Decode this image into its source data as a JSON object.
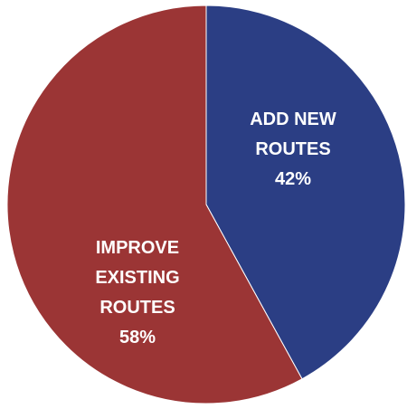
{
  "chart_data": {
    "type": "pie",
    "title": "",
    "slices": [
      {
        "label_lines": [
          "ADD NEW",
          "ROUTES"
        ],
        "value": 42,
        "value_label": "42%",
        "color": "#2B3E84"
      },
      {
        "label_lines": [
          "IMPROVE",
          "EXISTING",
          "ROUTES"
        ],
        "value": 58,
        "value_label": "58%",
        "color": "#9B3535"
      }
    ],
    "start_angle": "12 o'clock",
    "direction": "clockwise",
    "legend": "none"
  }
}
